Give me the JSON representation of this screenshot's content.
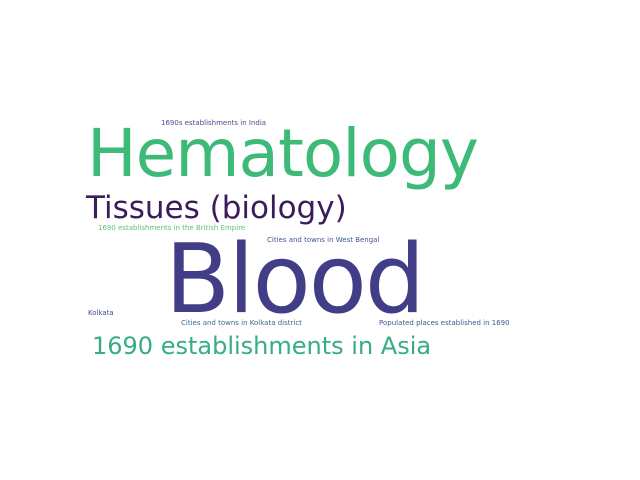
{
  "word_cloud": {
    "words": [
      {
        "key": "hematology",
        "text": "Hematology",
        "color": "#3dba78"
      },
      {
        "key": "blood",
        "text": "Blood",
        "color": "#423d87"
      },
      {
        "key": "tissues",
        "text": "Tissues (biology)",
        "color": "#3b1c5a"
      },
      {
        "key": "asia",
        "text": "1690 establishments in Asia",
        "color": "#36ad82"
      },
      {
        "key": "india_90s",
        "text": "1690s establishments in India",
        "color": "#4a4b8a"
      },
      {
        "key": "british",
        "text": "1690 establishments in the British Empire",
        "color": "#5ac36a"
      },
      {
        "key": "westbengal",
        "text": "Cities and towns in West Bengal",
        "color": "#3c5a8d"
      },
      {
        "key": "kolkata",
        "text": "Kolkata",
        "color": "#3e4d8a"
      },
      {
        "key": "kolkata_district",
        "text": "Cities and towns in Kolkata district",
        "color": "#3a6c8e"
      },
      {
        "key": "populated",
        "text": "Populated places established in 1690",
        "color": "#3b5b8c"
      }
    ]
  }
}
